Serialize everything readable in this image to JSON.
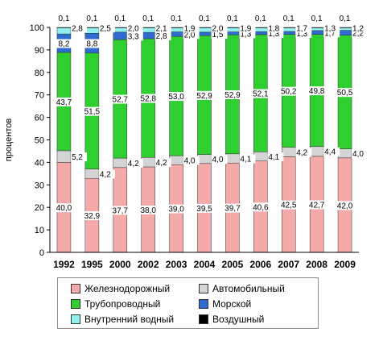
{
  "chart_data": {
    "type": "bar",
    "stacked": true,
    "ylabel": "процентов",
    "ylim": [
      0,
      100
    ],
    "yticks": [
      0,
      10,
      20,
      30,
      40,
      50,
      60,
      70,
      80,
      90,
      100
    ],
    "grid": false,
    "legend_position": "bottom",
    "categories": [
      "1992",
      "1995",
      "2000",
      "2002",
      "2003",
      "2004",
      "2005",
      "2006",
      "2007",
      "2008",
      "2009"
    ],
    "series": [
      {
        "name": "Железнодорожный",
        "color": "#f4aaa8",
        "values": [
          40.0,
          32.9,
          37.7,
          38.0,
          39.0,
          39.5,
          39.7,
          40.6,
          42.5,
          42.7,
          42.0
        ],
        "labels": [
          "40,0",
          "32,9",
          "37,7",
          "38,0",
          "39,0",
          "39,5",
          "39,7",
          "40,6",
          "42,5",
          "42,7",
          "42,0"
        ]
      },
      {
        "name": "Автомобильный",
        "color": "#d4d4d4",
        "values": [
          5.2,
          4.2,
          4.2,
          4.2,
          4.0,
          4.0,
          4.1,
          4.1,
          4.2,
          4.4,
          4.0
        ],
        "labels": [
          "5,2",
          "4,2",
          "4,2",
          "4,2",
          "4,0",
          "4,0",
          "4,1",
          "4,1",
          "4,2",
          "4,4",
          "4,0"
        ]
      },
      {
        "name": "Трубопроводный",
        "color": "#2fcf2f",
        "values": [
          43.7,
          51.5,
          52.7,
          52.8,
          53.0,
          52.9,
          52.9,
          52.1,
          50.2,
          49.8,
          50.5
        ],
        "labels": [
          "43,7",
          "51,5",
          "52,7",
          "52,8",
          "53,0",
          "52,9",
          "52,9",
          "52,1",
          "50,2",
          "49,8",
          "50,5"
        ]
      },
      {
        "name": "Морской",
        "color": "#2f6bd0",
        "values": [
          8.2,
          8.8,
          3.3,
          2.8,
          2.0,
          1.5,
          1.3,
          1.3,
          1.3,
          1.7,
          2.2
        ],
        "labels": [
          "8,2",
          "8,8",
          "3,3",
          "2,8",
          "2,0",
          "1,5",
          "1,3",
          "1,3",
          "1,3",
          "1,7",
          "2,2"
        ]
      },
      {
        "name": "Внутренний водный",
        "color": "#8ff0f0",
        "values": [
          2.8,
          2.5,
          2.0,
          2.1,
          1.9,
          2.0,
          1.9,
          1.8,
          1.7,
          1.3,
          1.2
        ],
        "labels": [
          "2,8",
          "2,5",
          "2,0",
          "2,1",
          "1,9",
          "2,0",
          "1,9",
          "1,8",
          "1,7",
          "1,3",
          "1,2"
        ]
      },
      {
        "name": "Воздушный",
        "color": "#000000",
        "values": [
          0.1,
          0.1,
          0.1,
          0.1,
          0.1,
          0.1,
          0.1,
          0.1,
          0.1,
          0.1,
          0.1
        ],
        "labels": [
          "0,1",
          "0,1",
          "0,1",
          "0,1",
          "0,1",
          "0,1",
          "0,1",
          "0,1",
          "0,1",
          "0,1",
          "0,1"
        ]
      }
    ],
    "legend_order": [
      0,
      1,
      2,
      3,
      4,
      5
    ]
  }
}
